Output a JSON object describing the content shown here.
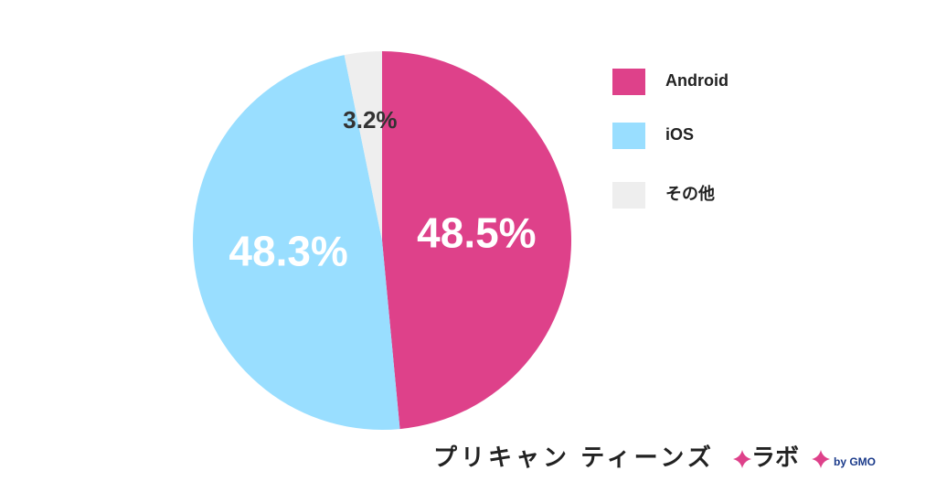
{
  "chart_data": {
    "type": "pie",
    "categories": [
      "Android",
      "iOS",
      "その他"
    ],
    "values": [
      48.5,
      48.3,
      3.2
    ],
    "value_labels": [
      "48.5%",
      "48.3%",
      "3.2%"
    ],
    "colors": [
      "#de418a",
      "#99deff",
      "#eeeeee"
    ],
    "label_colors": [
      "#ffffff",
      "#ffffff",
      "#333333"
    ],
    "annotations": [
      "プリキャン ティーンズ",
      "ラボ",
      "by GMO"
    ]
  }
}
